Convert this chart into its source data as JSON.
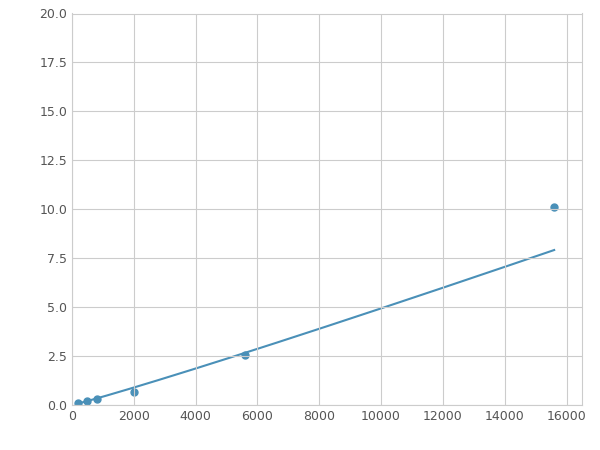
{
  "x": [
    200,
    500,
    800,
    2000,
    5600,
    15600
  ],
  "y": [
    0.1,
    0.2,
    0.3,
    0.65,
    2.55,
    10.1
  ],
  "line_color": "#4a90b8",
  "marker_color": "#4a90b8",
  "marker_size": 5,
  "xlim": [
    0,
    16500
  ],
  "ylim": [
    0,
    20.0
  ],
  "xticks": [
    0,
    2000,
    4000,
    6000,
    8000,
    10000,
    12000,
    14000,
    16000
  ],
  "yticks": [
    0.0,
    2.5,
    5.0,
    7.5,
    10.0,
    12.5,
    15.0,
    17.5,
    20.0
  ],
  "grid": true,
  "background_color": "#ffffff",
  "spine_color": "#cccccc"
}
